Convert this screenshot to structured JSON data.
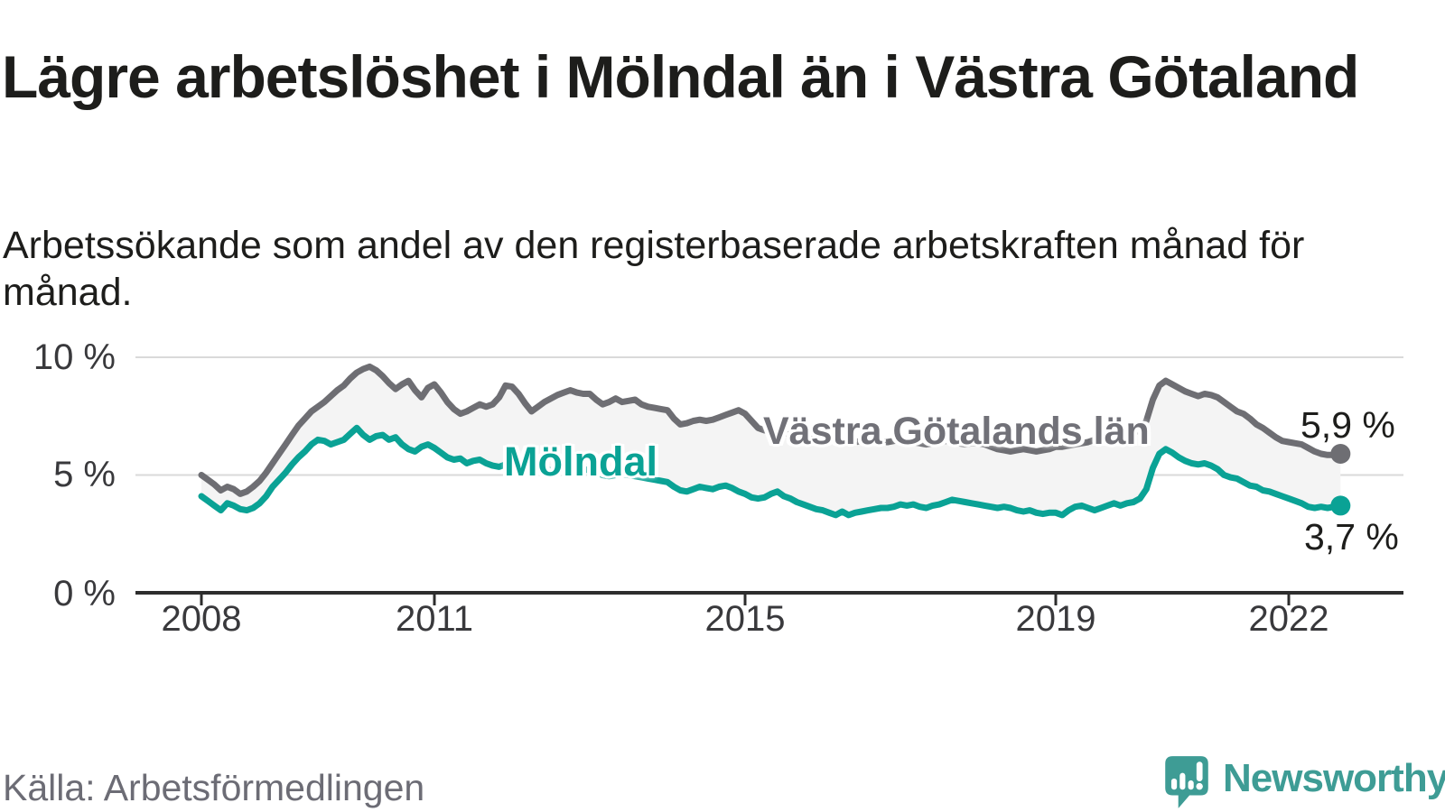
{
  "header": {
    "title": "Lägre arbetslöshet i Mölndal än i Västra Götaland",
    "subtitle": "Arbetssökande som andel av den registerbaserade arbetskraften månad för månad."
  },
  "footer": {
    "source": "Källa: Arbetsförmedlingen",
    "brand": "Newsworthy"
  },
  "colors": {
    "molndal_line": "#0aa295",
    "vastra_gotaland_line": "#6e6e73",
    "band_fill": "#f4f4f4",
    "gridline": "#d9d9d9",
    "axis": "#2d2d2d",
    "title_text": "#1d1d1b",
    "muted_text": "#6c6c75",
    "brand_teal": "#3e9c95"
  },
  "chart_data": {
    "type": "line",
    "x_frequency": "monthly",
    "x_start": "2008-01",
    "x_end": "2022-09",
    "ylim": [
      0,
      10.4
    ],
    "grid": "horizontal",
    "yticks": [
      0,
      5,
      10
    ],
    "ytick_labels": [
      "0 %",
      "5 %",
      "10 %"
    ],
    "xtick_years": [
      2008,
      2011,
      2015,
      2019,
      2022
    ],
    "xtick_labels": [
      "2008",
      "2011",
      "2015",
      "2019",
      "2022"
    ],
    "series": [
      {
        "name": "Västra Götalands län",
        "color": "#6e6e73",
        "end_label": "5,9 %",
        "end_value": 5.9,
        "values": [
          5.0,
          4.8,
          4.6,
          4.35,
          4.5,
          4.4,
          4.2,
          4.3,
          4.5,
          4.75,
          5.1,
          5.5,
          5.9,
          6.3,
          6.7,
          7.1,
          7.4,
          7.7,
          7.9,
          8.1,
          8.35,
          8.6,
          8.8,
          9.1,
          9.35,
          9.5,
          9.6,
          9.45,
          9.2,
          8.9,
          8.65,
          8.85,
          9.0,
          8.6,
          8.3,
          8.7,
          8.85,
          8.5,
          8.1,
          7.8,
          7.6,
          7.7,
          7.85,
          8.0,
          7.9,
          8.0,
          8.3,
          8.8,
          8.75,
          8.45,
          8.05,
          7.7,
          7.9,
          8.1,
          8.25,
          8.4,
          8.5,
          8.6,
          8.5,
          8.45,
          8.45,
          8.2,
          8.0,
          8.1,
          8.25,
          8.1,
          8.15,
          8.2,
          8.0,
          7.9,
          7.85,
          7.8,
          7.75,
          7.4,
          7.15,
          7.2,
          7.3,
          7.35,
          7.3,
          7.35,
          7.45,
          7.55,
          7.65,
          7.75,
          7.6,
          7.3,
          7.0,
          6.9,
          6.85,
          6.8,
          6.75,
          6.8,
          6.85,
          6.8,
          6.75,
          6.7,
          6.7,
          6.6,
          6.55,
          6.5,
          6.45,
          6.4,
          6.45,
          6.5,
          6.45,
          6.4,
          6.4,
          6.45,
          6.5,
          6.45,
          6.4,
          6.35,
          6.3,
          6.35,
          6.4,
          6.45,
          6.4,
          6.35,
          6.3,
          6.35,
          6.35,
          6.3,
          6.2,
          6.1,
          6.05,
          6.0,
          6.05,
          6.1,
          6.05,
          6.0,
          6.05,
          6.1,
          6.2,
          6.2,
          6.25,
          6.3,
          6.35,
          6.4,
          6.5,
          6.5,
          6.5,
          6.55,
          6.6,
          6.7,
          6.8,
          6.9,
          7.3,
          8.2,
          8.8,
          9.0,
          8.85,
          8.7,
          8.55,
          8.45,
          8.35,
          8.45,
          8.4,
          8.3,
          8.1,
          7.9,
          7.7,
          7.6,
          7.4,
          7.15,
          7.0,
          6.8,
          6.6,
          6.45,
          6.4,
          6.35,
          6.3,
          6.15,
          6.0,
          5.9,
          5.85,
          5.85,
          5.9
        ]
      },
      {
        "name": "Mölndal",
        "color": "#0aa295",
        "end_label": "3,7 %",
        "end_value": 3.7,
        "values": [
          4.1,
          3.9,
          3.7,
          3.5,
          3.8,
          3.7,
          3.55,
          3.5,
          3.6,
          3.8,
          4.1,
          4.5,
          4.8,
          5.1,
          5.45,
          5.75,
          6.0,
          6.3,
          6.5,
          6.45,
          6.3,
          6.4,
          6.5,
          6.75,
          7.0,
          6.7,
          6.5,
          6.65,
          6.7,
          6.5,
          6.6,
          6.3,
          6.1,
          6.0,
          6.2,
          6.3,
          6.15,
          5.95,
          5.75,
          5.65,
          5.7,
          5.5,
          5.6,
          5.65,
          5.5,
          5.4,
          5.35,
          5.45,
          5.45,
          5.35,
          5.3,
          5.35,
          5.3,
          5.25,
          5.2,
          5.25,
          5.3,
          5.35,
          5.3,
          5.25,
          5.2,
          5.1,
          5.0,
          4.95,
          5.0,
          5.05,
          5.0,
          4.95,
          4.9,
          4.85,
          4.8,
          4.75,
          4.7,
          4.5,
          4.35,
          4.3,
          4.4,
          4.5,
          4.45,
          4.4,
          4.5,
          4.55,
          4.45,
          4.3,
          4.2,
          4.05,
          4.0,
          4.05,
          4.2,
          4.3,
          4.1,
          4.0,
          3.85,
          3.75,
          3.65,
          3.55,
          3.5,
          3.4,
          3.3,
          3.45,
          3.3,
          3.4,
          3.45,
          3.5,
          3.55,
          3.6,
          3.6,
          3.65,
          3.75,
          3.7,
          3.75,
          3.65,
          3.6,
          3.7,
          3.75,
          3.85,
          3.95,
          3.9,
          3.85,
          3.8,
          3.75,
          3.7,
          3.65,
          3.6,
          3.65,
          3.6,
          3.5,
          3.45,
          3.5,
          3.4,
          3.35,
          3.4,
          3.4,
          3.3,
          3.5,
          3.65,
          3.7,
          3.6,
          3.5,
          3.6,
          3.7,
          3.8,
          3.7,
          3.8,
          3.85,
          4.0,
          4.4,
          5.3,
          5.9,
          6.1,
          5.95,
          5.75,
          5.6,
          5.5,
          5.45,
          5.5,
          5.4,
          5.25,
          5.0,
          4.9,
          4.85,
          4.7,
          4.55,
          4.5,
          4.35,
          4.3,
          4.2,
          4.1,
          4.0,
          3.9,
          3.8,
          3.65,
          3.6,
          3.65,
          3.6,
          3.65,
          3.7
        ]
      }
    ]
  }
}
